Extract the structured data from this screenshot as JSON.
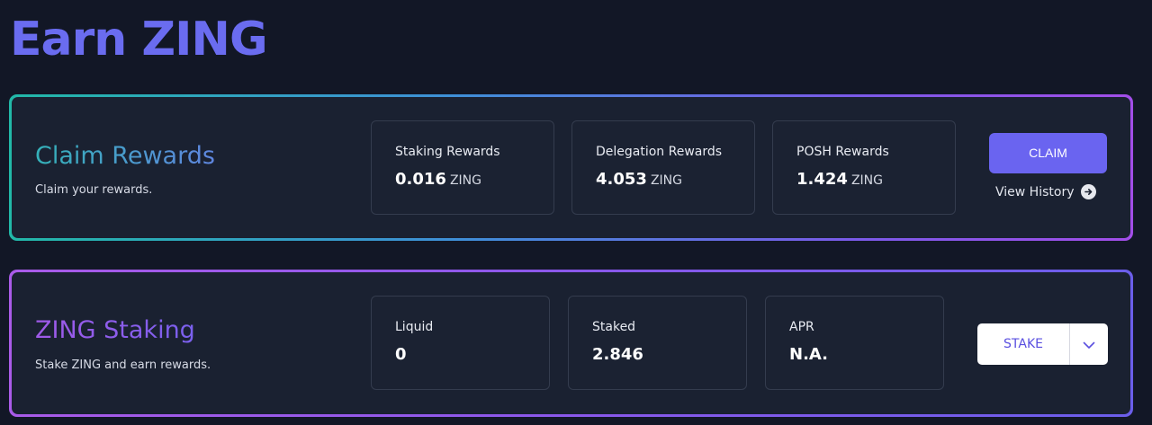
{
  "page": {
    "title": "Earn ZING"
  },
  "claim": {
    "title": "Claim Rewards",
    "subtitle": "Claim your rewards.",
    "stats": [
      {
        "label": "Staking Rewards",
        "value": "0.016",
        "unit": "ZING"
      },
      {
        "label": "Delegation Rewards",
        "value": "4.053",
        "unit": "ZING"
      },
      {
        "label": "POSH Rewards",
        "value": "1.424",
        "unit": "ZING"
      }
    ],
    "button_label": "CLAIM",
    "history_link": "View History",
    "history_icon": "arrow-right-circle-icon"
  },
  "staking": {
    "title": "ZING Staking",
    "subtitle": "Stake ZING and earn rewards.",
    "stats": [
      {
        "label": "Liquid",
        "value": "0"
      },
      {
        "label": "Staked",
        "value": "2.846"
      },
      {
        "label": "APR",
        "value": "N.A."
      }
    ],
    "button_label": "STAKE",
    "dropdown_icon": "chevron-down-icon"
  },
  "colors": {
    "accent": "#6a64f0",
    "background": "#121726",
    "card": "#1a2131"
  }
}
